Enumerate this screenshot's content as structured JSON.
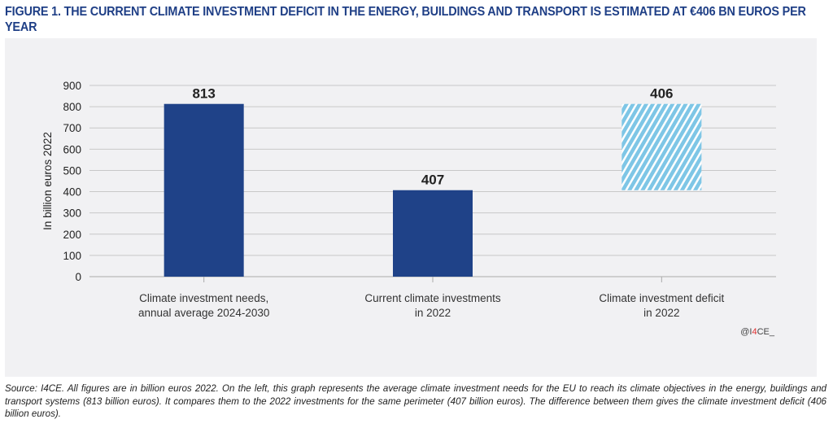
{
  "title": "FIGURE 1. THE CURRENT CLIMATE INVESTMENT DEFICIT IN THE ENERGY, BUILDINGS AND TRANSPORT IS ESTIMATED AT €406 BN EUROS PER YEAR",
  "credit": {
    "prefix": "@I",
    "highlight": "4",
    "suffix": "CE_"
  },
  "source": "Source: I4CE. All figures are in billion euros 2022. On the left, this graph represents the average climate investment needs for the EU to reach its climate objectives in the energy, buildings and transport systems (813 billion euros). It compares them to the 2022 investments for the same perimeter (407 billion euros). The difference between them gives the climate investment deficit (406 billion euros).",
  "colors": {
    "bar": "#1f4288",
    "deficit": "#7ec6e6",
    "grid": "#c8c8c8",
    "credit_accent": "#e03030"
  },
  "chart_data": {
    "type": "bar",
    "ylabel": "In billion euros 2022",
    "ylim": [
      0,
      900
    ],
    "yticks": [
      0,
      100,
      200,
      300,
      400,
      500,
      600,
      700,
      800,
      900
    ],
    "grid": true,
    "categories": [
      [
        "Climate investment needs,",
        "annual average 2024-2030"
      ],
      [
        "Current climate investments",
        "in 2022"
      ],
      [
        "Climate investment deficit",
        "in 2022"
      ]
    ],
    "bars": [
      {
        "base": 0,
        "top": 813,
        "label": "813",
        "style": "solid"
      },
      {
        "base": 0,
        "top": 407,
        "label": "407",
        "style": "solid"
      },
      {
        "base": 407,
        "top": 813,
        "label": "406",
        "style": "hatched"
      }
    ]
  }
}
